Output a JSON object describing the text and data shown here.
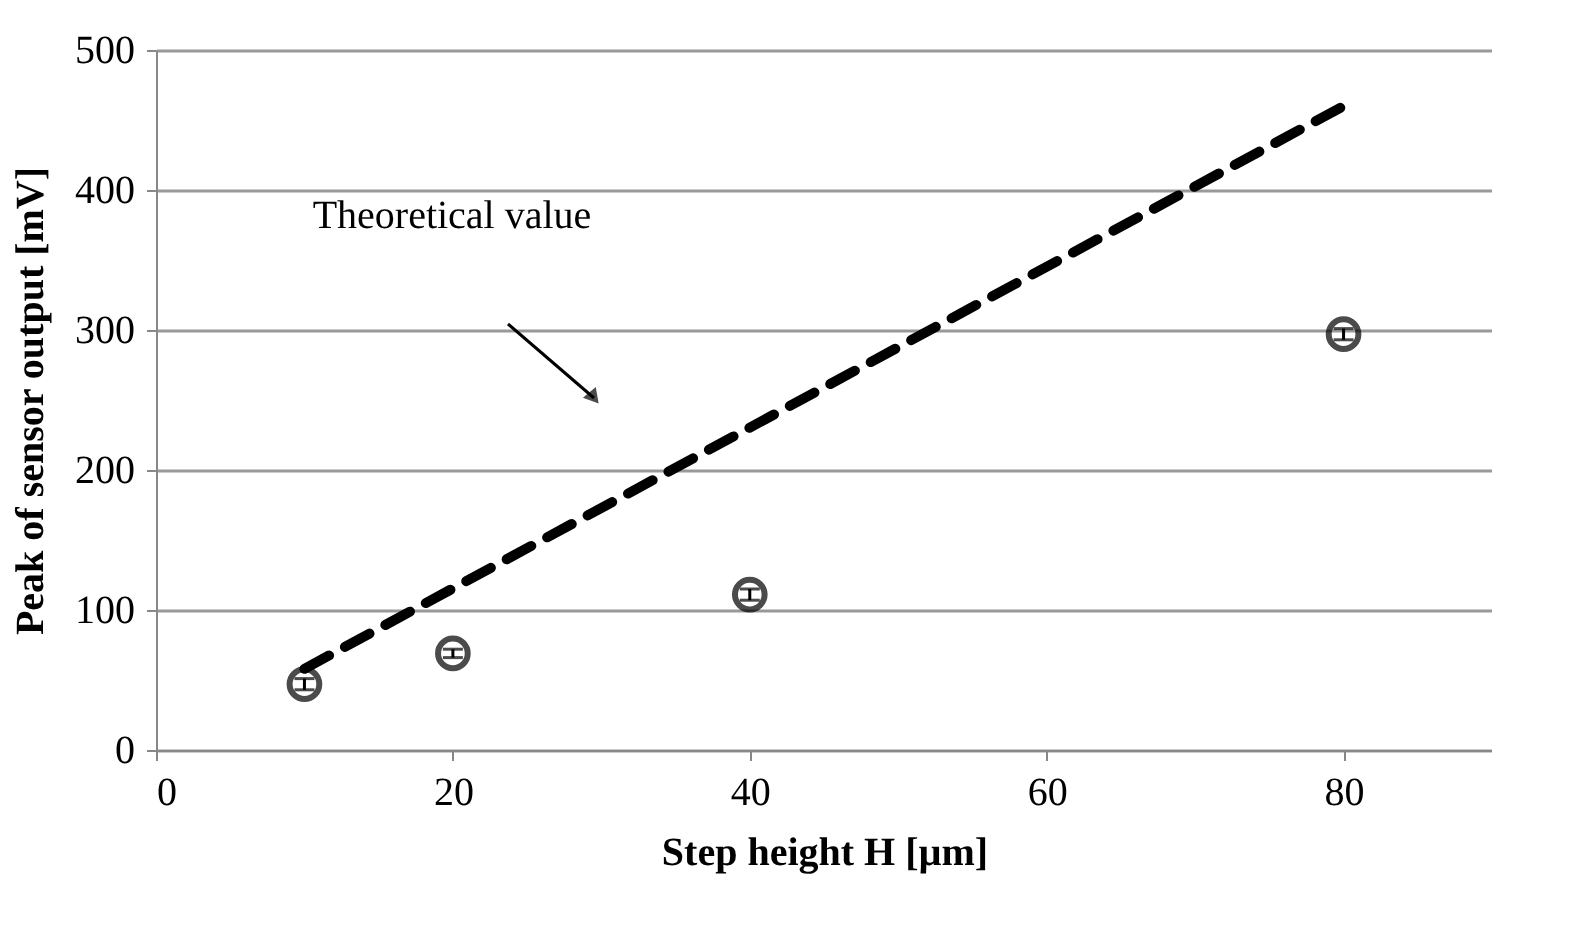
{
  "chart_data": {
    "type": "scatter",
    "xlabel": "Step height H [µm]",
    "ylabel": "Peak of sensor output [mV]",
    "xlim": [
      0,
      90
    ],
    "xticks": [
      0,
      20,
      40,
      60,
      80
    ],
    "ylim": [
      0,
      500
    ],
    "yticks": [
      0,
      100,
      200,
      300,
      400,
      500
    ],
    "grid": "y",
    "marker": "circle",
    "series": [
      {
        "type": "scatter",
        "color": "#000000",
        "x": [
          10,
          20,
          40,
          80
        ],
        "values": [
          47,
          69,
          111,
          297
        ],
        "errors": [
          4,
          3,
          4,
          4
        ]
      },
      {
        "type": "line",
        "color": "#000000",
        "line_style": "dashed",
        "marker": "none",
        "x": [
          10,
          80
        ],
        "values": [
          58,
          460
        ]
      }
    ],
    "annotations": [
      "Theoretical value"
    ]
  }
}
